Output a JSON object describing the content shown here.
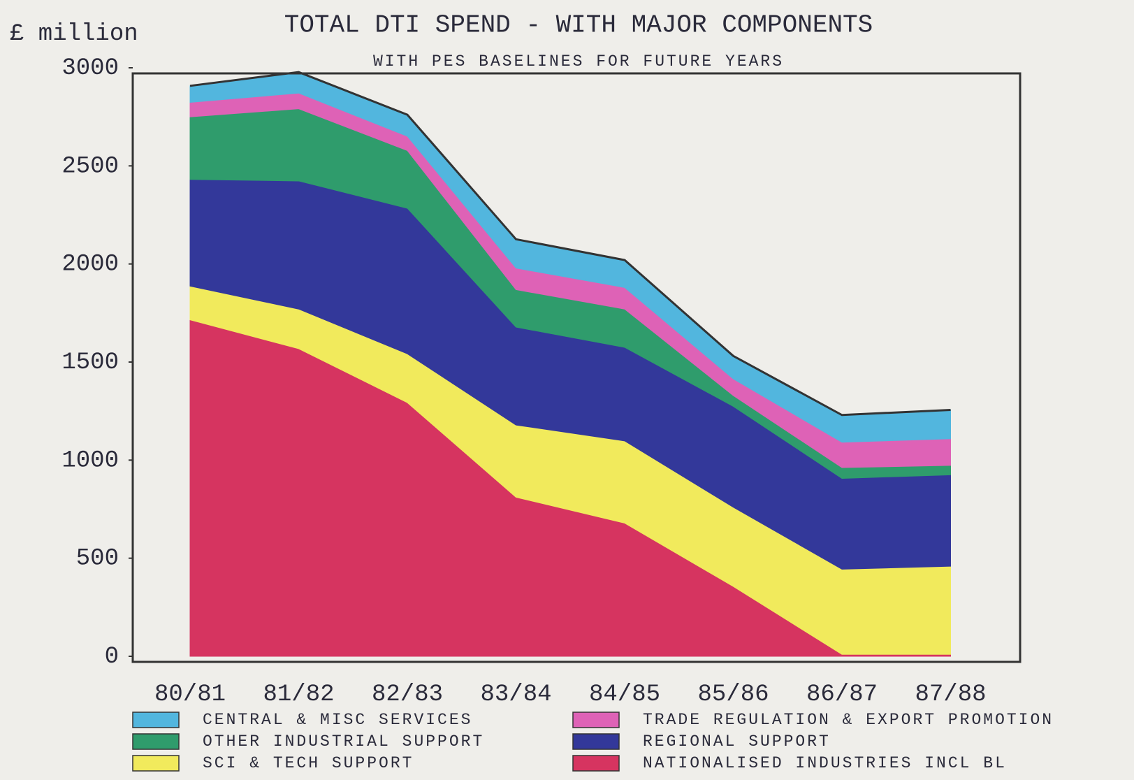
{
  "chart_data": {
    "type": "stacked-area",
    "title": "TOTAL DTI SPEND - WITH MAJOR COMPONENTS",
    "subtitle": "WITH PES BASELINES FOR FUTURE YEARS",
    "y_label": "£ million",
    "categories": [
      "80/81",
      "81/82",
      "82/83",
      "83/84",
      "84/85",
      "85/86",
      "86/87",
      "87/88"
    ],
    "ylim": [
      0,
      3000
    ],
    "yticks": [
      0,
      500,
      1000,
      1500,
      2000,
      2500,
      3000
    ],
    "series": [
      {
        "name": "NATIONALISED INDUSTRIES INCL BL",
        "color": "#d63460",
        "values": [
          1715,
          1568,
          1293,
          811,
          679,
          356,
          10,
          10
        ]
      },
      {
        "name": "SCI & TECH SUPPORT",
        "color": "#f1ea5c",
        "values": [
          172,
          202,
          249,
          368,
          419,
          404,
          434,
          449
        ]
      },
      {
        "name": "REGIONAL SUPPORT",
        "color": "#33389a",
        "values": [
          544,
          653,
          742,
          499,
          477,
          514,
          463,
          466
        ]
      },
      {
        "name": "OTHER INDUSTRIAL SUPPORT",
        "color": "#2f9c6c",
        "values": [
          319,
          368,
          294,
          191,
          195,
          55,
          55,
          48
        ]
      },
      {
        "name": "TRADE REGULATION & EXPORT PROMOTION",
        "color": "#de62b6",
        "values": [
          74,
          80,
          73,
          110,
          110,
          85,
          129,
          136
        ]
      },
      {
        "name": "CENTRAL & MISC SERVICES",
        "color": "#52b6de",
        "values": [
          84,
          107,
          110,
          147,
          140,
          117,
          139,
          147
        ]
      }
    ]
  }
}
